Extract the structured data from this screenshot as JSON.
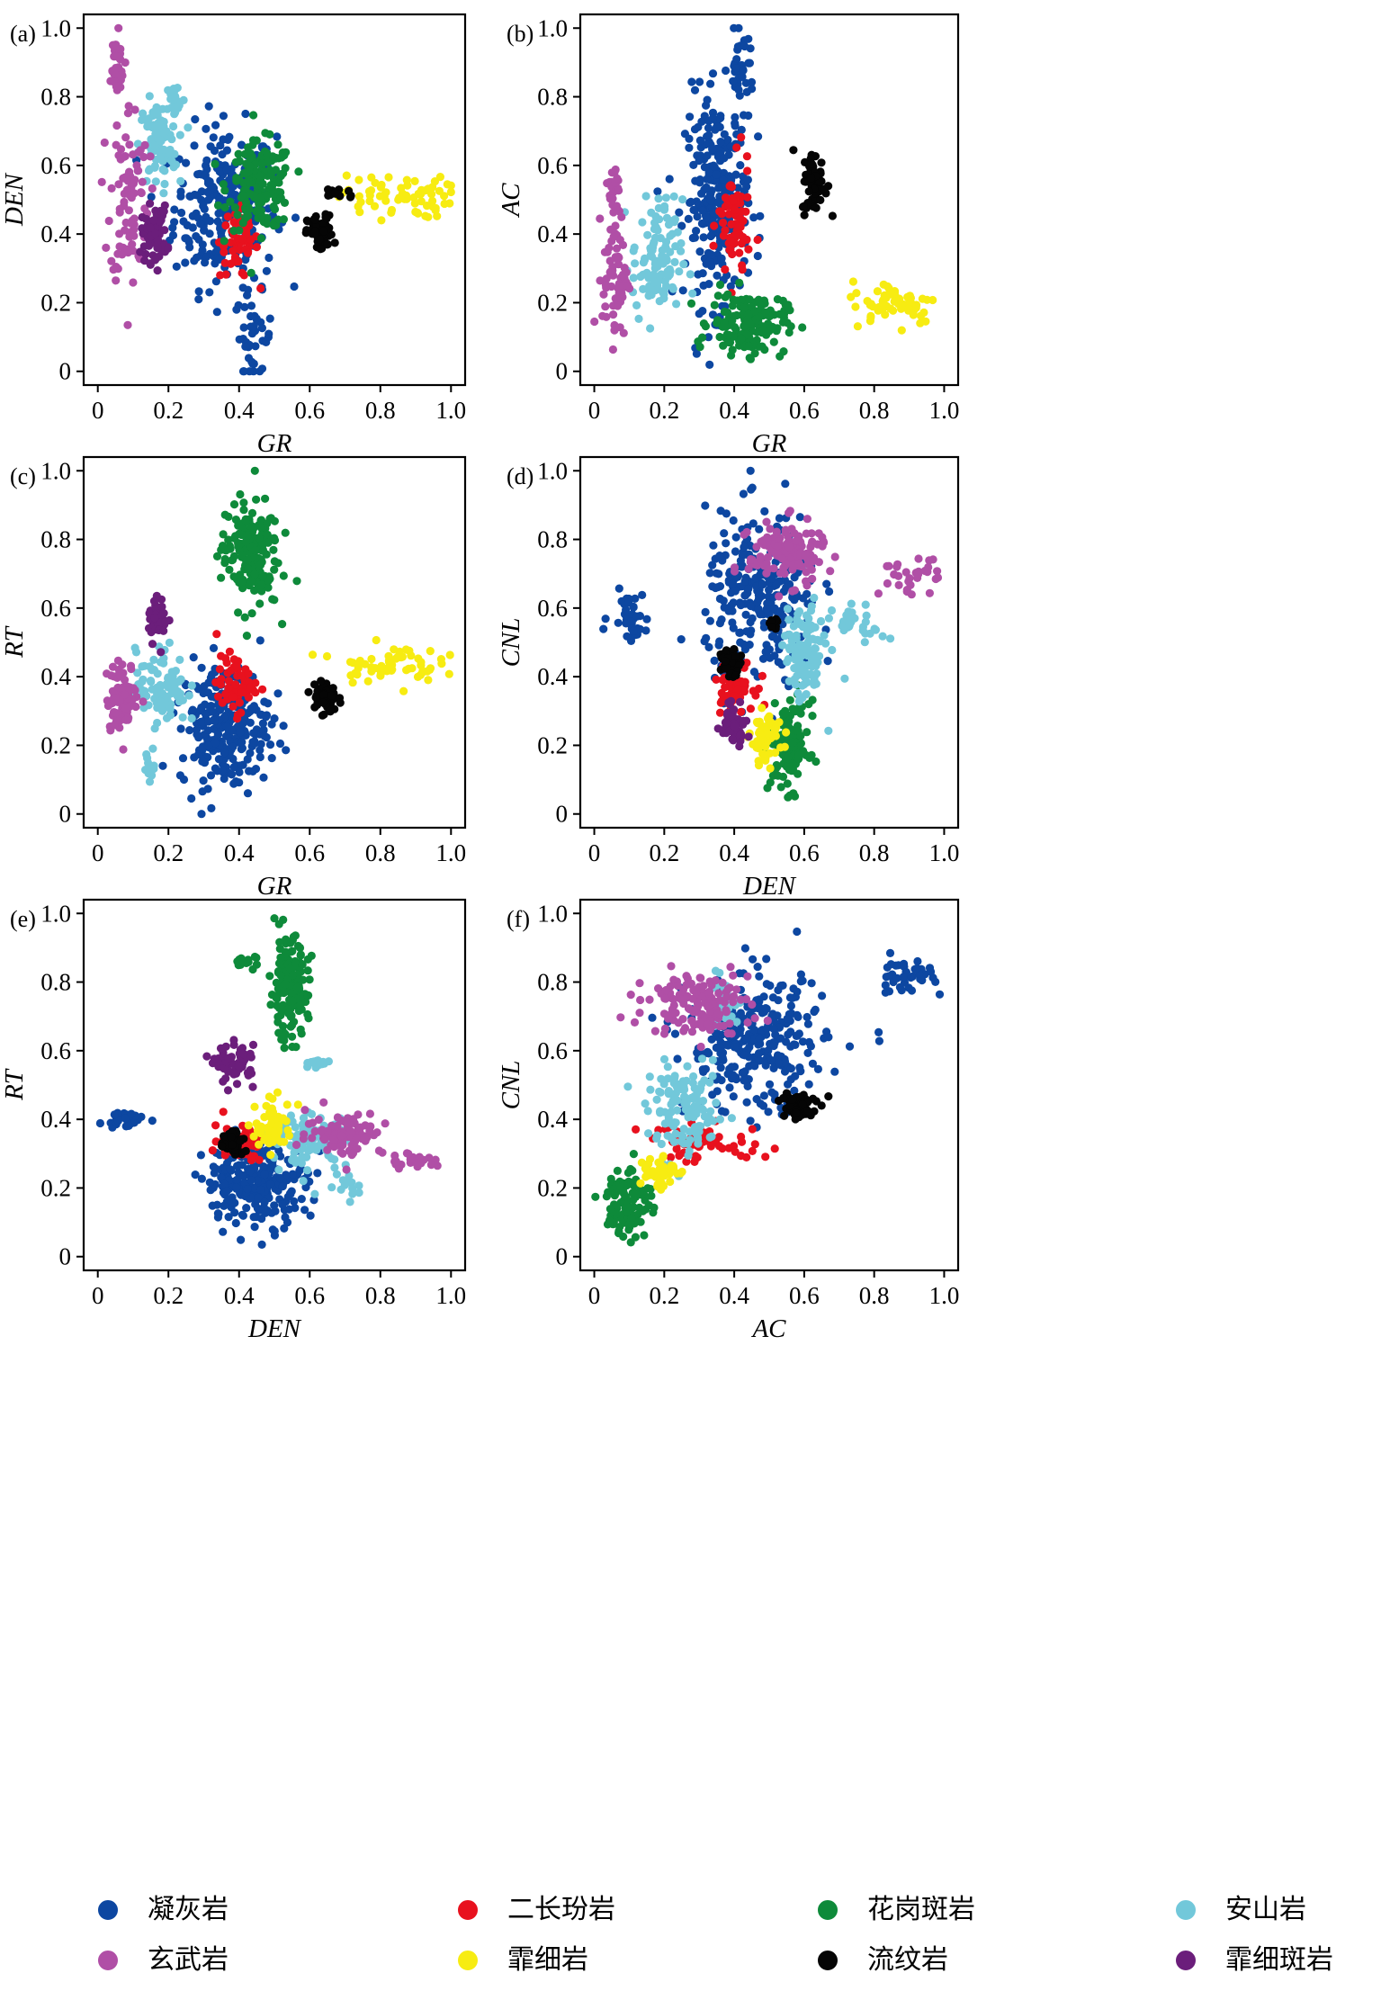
{
  "legend": [
    {
      "label": "凝灰岩",
      "color": "#0D47A1"
    },
    {
      "label": "二长玢岩",
      "color": "#E8111E"
    },
    {
      "label": "花岗斑岩",
      "color": "#0E8A3A"
    },
    {
      "label": "安山岩",
      "color": "#72C8DA"
    },
    {
      "label": "玄武岩",
      "color": "#B04FA6"
    },
    {
      "label": "霏细岩",
      "color": "#F7EC12"
    },
    {
      "label": "流纹岩",
      "color": "#050505"
    },
    {
      "label": "霏细斑岩",
      "color": "#6B1E7B"
    }
  ],
  "chart_data": [
    {
      "tag": "(a)",
      "type": "scatter",
      "xlabel": "GR",
      "ylabel": "DEN",
      "xlim": [
        0,
        1
      ],
      "ylim": [
        0,
        1
      ],
      "xticks": [
        "0",
        "0.2",
        "0.4",
        "0.6",
        "0.8",
        "1.0"
      ],
      "yticks": [
        "0",
        "0.2",
        "0.4",
        "0.6",
        "0.8",
        "1.0"
      ],
      "series": [
        {
          "name": "凝灰岩",
          "clusters": [
            [
              0.36,
              0.48,
              0.16,
              0.26,
              260
            ],
            [
              0.44,
              0.1,
              0.06,
              0.14,
              40
            ]
          ]
        },
        {
          "name": "二长玢岩",
          "clusters": [
            [
              0.4,
              0.38,
              0.06,
              0.12,
              60
            ]
          ]
        },
        {
          "name": "花岗斑岩",
          "clusters": [
            [
              0.46,
              0.54,
              0.1,
              0.14,
              170
            ]
          ]
        },
        {
          "name": "安山岩",
          "clusters": [
            [
              0.17,
              0.66,
              0.06,
              0.14,
              90
            ],
            [
              0.22,
              0.79,
              0.03,
              0.06,
              20
            ]
          ]
        },
        {
          "name": "玄武岩",
          "clusters": [
            [
              0.09,
              0.52,
              0.06,
              0.3,
              90
            ],
            [
              0.05,
              0.88,
              0.03,
              0.12,
              30
            ]
          ]
        },
        {
          "name": "霏细岩",
          "clusters": [
            [
              0.84,
              0.51,
              0.18,
              0.07,
              70
            ]
          ]
        },
        {
          "name": "流纹岩",
          "clusters": [
            [
              0.63,
              0.4,
              0.04,
              0.06,
              70
            ],
            [
              0.68,
              0.52,
              0.06,
              0.02,
              15
            ]
          ]
        },
        {
          "name": "霏细斑岩",
          "clusters": [
            [
              0.16,
              0.4,
              0.04,
              0.09,
              60
            ]
          ]
        }
      ]
    },
    {
      "tag": "(b)",
      "type": "scatter",
      "xlabel": "GR",
      "ylabel": "AC",
      "xlim": [
        0,
        1
      ],
      "ylim": [
        0,
        1
      ],
      "xticks": [
        "0",
        "0.2",
        "0.4",
        "0.6",
        "0.8",
        "1.0"
      ],
      "yticks": [
        "0",
        "0.2",
        "0.4",
        "0.6",
        "0.8",
        "1.0"
      ],
      "series": [
        {
          "name": "凝灰岩",
          "clusters": [
            [
              0.35,
              0.5,
              0.1,
              0.34,
              260
            ],
            [
              0.42,
              0.88,
              0.04,
              0.12,
              40
            ]
          ]
        },
        {
          "name": "二长玢岩",
          "clusters": [
            [
              0.4,
              0.42,
              0.05,
              0.2,
              70
            ]
          ]
        },
        {
          "name": "花岗斑岩",
          "clusters": [
            [
              0.44,
              0.14,
              0.12,
              0.1,
              160
            ]
          ]
        },
        {
          "name": "安山岩",
          "clusters": [
            [
              0.18,
              0.32,
              0.08,
              0.2,
              110
            ]
          ]
        },
        {
          "name": "玄武岩",
          "clusters": [
            [
              0.06,
              0.28,
              0.04,
              0.2,
              70
            ],
            [
              0.06,
              0.52,
              0.02,
              0.12,
              25
            ]
          ]
        },
        {
          "name": "霏细岩",
          "clusters": [
            [
              0.86,
              0.2,
              0.14,
              0.07,
              60
            ]
          ]
        },
        {
          "name": "流纹岩",
          "clusters": [
            [
              0.63,
              0.55,
              0.04,
              0.1,
              60
            ]
          ]
        },
        {
          "name": "霏细斑岩",
          "clusters": []
        }
      ]
    },
    {
      "tag": "(c)",
      "type": "scatter",
      "xlabel": "GR",
      "ylabel": "RT",
      "xlim": [
        0,
        1
      ],
      "ylim": [
        0,
        1
      ],
      "xticks": [
        "0",
        "0.2",
        "0.4",
        "0.6",
        "0.8",
        "1.0"
      ],
      "yticks": [
        "0",
        "0.2",
        "0.4",
        "0.6",
        "0.8",
        "1.0"
      ],
      "series": [
        {
          "name": "凝灰岩",
          "clusters": [
            [
              0.36,
              0.26,
              0.14,
              0.2,
              260
            ]
          ]
        },
        {
          "name": "二长玢岩",
          "clusters": [
            [
              0.39,
              0.38,
              0.06,
              0.09,
              60
            ]
          ]
        },
        {
          "name": "花岗斑岩",
          "clusters": [
            [
              0.43,
              0.76,
              0.09,
              0.18,
              180
            ]
          ]
        },
        {
          "name": "安山岩",
          "clusters": [
            [
              0.18,
              0.37,
              0.08,
              0.12,
              90
            ],
            [
              0.15,
              0.14,
              0.02,
              0.05,
              12
            ]
          ]
        },
        {
          "name": "玄武岩",
          "clusters": [
            [
              0.07,
              0.34,
              0.05,
              0.11,
              90
            ]
          ]
        },
        {
          "name": "霏细岩",
          "clusters": [
            [
              0.82,
              0.44,
              0.16,
              0.06,
              60
            ]
          ]
        },
        {
          "name": "流纹岩",
          "clusters": [
            [
              0.64,
              0.34,
              0.04,
              0.06,
              60
            ]
          ]
        },
        {
          "name": "霏细斑岩",
          "clusters": [
            [
              0.17,
              0.57,
              0.03,
              0.07,
              40
            ]
          ]
        }
      ]
    },
    {
      "tag": "(d)",
      "type": "scatter",
      "xlabel": "DEN",
      "ylabel": "CNL",
      "xlim": [
        0,
        1
      ],
      "ylim": [
        0,
        1
      ],
      "xticks": [
        "0",
        "0.2",
        "0.4",
        "0.6",
        "0.8",
        "1.0"
      ],
      "yticks": [
        "0",
        "0.2",
        "0.4",
        "0.6",
        "0.8",
        "1.0"
      ],
      "series": [
        {
          "name": "凝灰岩",
          "clusters": [
            [
              0.48,
              0.62,
              0.18,
              0.28,
              280
            ],
            [
              0.1,
              0.58,
              0.06,
              0.08,
              40
            ]
          ]
        },
        {
          "name": "二长玢岩",
          "clusters": [
            [
              0.4,
              0.38,
              0.06,
              0.08,
              60
            ]
          ]
        },
        {
          "name": "花岗斑岩",
          "clusters": [
            [
              0.56,
              0.2,
              0.06,
              0.14,
              120
            ]
          ]
        },
        {
          "name": "安山岩",
          "clusters": [
            [
              0.6,
              0.46,
              0.06,
              0.16,
              120
            ],
            [
              0.76,
              0.55,
              0.08,
              0.06,
              30
            ]
          ]
        },
        {
          "name": "玄武岩",
          "clusters": [
            [
              0.55,
              0.76,
              0.12,
              0.1,
              150
            ],
            [
              0.9,
              0.69,
              0.1,
              0.06,
              30
            ]
          ]
        },
        {
          "name": "霏细岩",
          "clusters": [
            [
              0.49,
              0.22,
              0.05,
              0.08,
              60
            ]
          ]
        },
        {
          "name": "流纹岩",
          "clusters": [
            [
              0.39,
              0.44,
              0.03,
              0.04,
              50
            ],
            [
              0.51,
              0.55,
              0.02,
              0.02,
              10
            ]
          ]
        },
        {
          "name": "霏细斑岩",
          "clusters": [
            [
              0.4,
              0.27,
              0.04,
              0.07,
              50
            ]
          ]
        }
      ]
    },
    {
      "tag": "(e)",
      "type": "scatter",
      "xlabel": "DEN",
      "ylabel": "RT",
      "xlim": [
        0,
        1
      ],
      "ylim": [
        0,
        1
      ],
      "xticks": [
        "0",
        "0.2",
        "0.4",
        "0.6",
        "0.8",
        "1.0"
      ],
      "yticks": [
        "0",
        "0.2",
        "0.4",
        "0.6",
        "0.8",
        "1.0"
      ],
      "series": [
        {
          "name": "凝灰岩",
          "clusters": [
            [
              0.45,
              0.22,
              0.16,
              0.14,
              260
            ],
            [
              0.08,
              0.4,
              0.07,
              0.03,
              25
            ]
          ]
        },
        {
          "name": "二长玢岩",
          "clusters": [
            [
              0.4,
              0.34,
              0.08,
              0.06,
              60
            ]
          ]
        },
        {
          "name": "花岗斑岩",
          "clusters": [
            [
              0.54,
              0.78,
              0.06,
              0.16,
              160
            ],
            [
              0.42,
              0.86,
              0.04,
              0.02,
              15
            ]
          ]
        },
        {
          "name": "安山岩",
          "clusters": [
            [
              0.6,
              0.34,
              0.12,
              0.08,
              100
            ],
            [
              0.7,
              0.23,
              0.08,
              0.06,
              15
            ],
            [
              0.62,
              0.56,
              0.06,
              0.02,
              15
            ]
          ]
        },
        {
          "name": "玄武岩",
          "clusters": [
            [
              0.7,
              0.36,
              0.12,
              0.07,
              90
            ],
            [
              0.9,
              0.28,
              0.08,
              0.03,
              25
            ]
          ]
        },
        {
          "name": "霏细岩",
          "clusters": [
            [
              0.5,
              0.38,
              0.06,
              0.08,
              60
            ]
          ]
        },
        {
          "name": "流纹岩",
          "clusters": [
            [
              0.38,
              0.33,
              0.04,
              0.05,
              50
            ]
          ]
        },
        {
          "name": "霏细斑岩",
          "clusters": [
            [
              0.39,
              0.56,
              0.06,
              0.06,
              60
            ]
          ]
        }
      ]
    },
    {
      "tag": "(f)",
      "type": "scatter",
      "xlabel": "AC",
      "ylabel": "CNL",
      "xlim": [
        0,
        1
      ],
      "ylim": [
        0,
        1
      ],
      "xticks": [
        "0",
        "0.2",
        "0.4",
        "0.6",
        "0.8",
        "1.0"
      ],
      "yticks": [
        "0",
        "0.2",
        "0.4",
        "0.6",
        "0.8",
        "1.0"
      ],
      "series": [
        {
          "name": "凝灰岩",
          "clusters": [
            [
              0.46,
              0.62,
              0.22,
              0.22,
              300
            ],
            [
              0.88,
              0.82,
              0.1,
              0.06,
              40
            ]
          ]
        },
        {
          "name": "二长玢岩",
          "clusters": [
            [
              0.32,
              0.33,
              0.2,
              0.06,
              60
            ]
          ]
        },
        {
          "name": "花岗斑岩",
          "clusters": [
            [
              0.1,
              0.16,
              0.07,
              0.12,
              100
            ]
          ]
        },
        {
          "name": "安山岩",
          "clusters": [
            [
              0.26,
              0.42,
              0.12,
              0.14,
              130
            ],
            [
              0.36,
              0.74,
              0.06,
              0.08,
              40
            ]
          ]
        },
        {
          "name": "玄武岩",
          "clusters": [
            [
              0.3,
              0.74,
              0.16,
              0.1,
              140
            ]
          ]
        },
        {
          "name": "霏细岩",
          "clusters": [
            [
              0.18,
              0.25,
              0.06,
              0.06,
              50
            ]
          ]
        },
        {
          "name": "流纹岩",
          "clusters": [
            [
              0.58,
              0.44,
              0.06,
              0.05,
              60
            ]
          ]
        },
        {
          "name": "霏细斑岩",
          "clusters": []
        }
      ]
    }
  ]
}
